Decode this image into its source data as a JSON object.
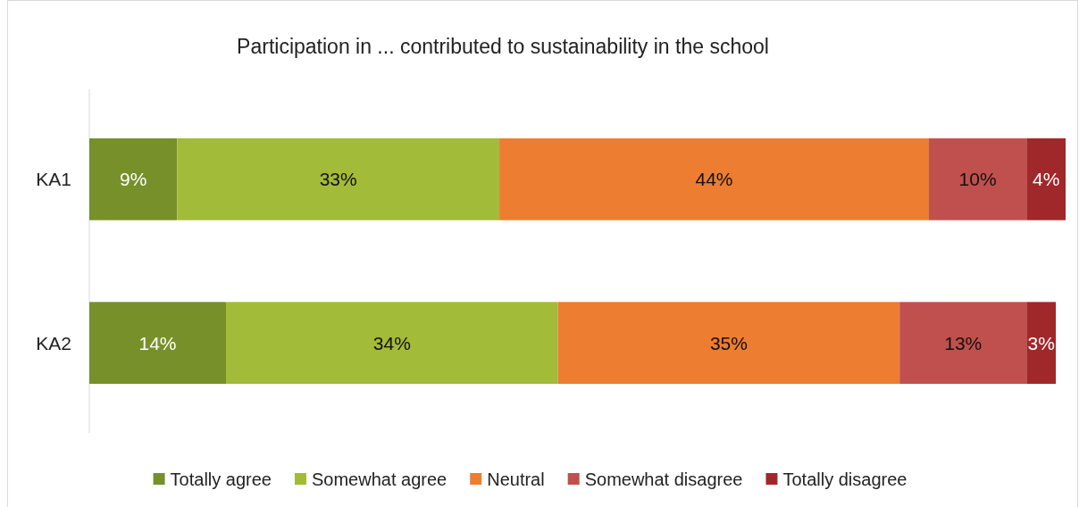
{
  "chart_data": {
    "type": "bar",
    "orientation": "horizontal",
    "stacked": true,
    "title": "Participation in ... contributed to sustainability in the school",
    "categories": [
      "KA1",
      "KA2"
    ],
    "series": [
      {
        "name": "Totally agree",
        "color": "#77902a",
        "values": [
          9,
          14
        ],
        "value_labels": [
          "9%",
          "14%"
        ]
      },
      {
        "name": "Somewhat agree",
        "color": "#a2bb38",
        "values": [
          33,
          34
        ],
        "value_labels": [
          "33%",
          "34%"
        ]
      },
      {
        "name": "Neutral",
        "color": "#ed7d31",
        "values": [
          44,
          35
        ],
        "value_labels": [
          "44%",
          "35%"
        ]
      },
      {
        "name": "Somewhat disagree",
        "color": "#c0504d",
        "values": [
          10,
          13
        ],
        "value_labels": [
          "10%",
          "13%"
        ]
      },
      {
        "name": "Totally disagree",
        "color": "#a0282a",
        "values": [
          4,
          3
        ],
        "value_labels": [
          "4%",
          "3%"
        ]
      }
    ],
    "xlim": [
      0,
      100
    ],
    "tick_labels": "y",
    "legend": "bottom"
  }
}
